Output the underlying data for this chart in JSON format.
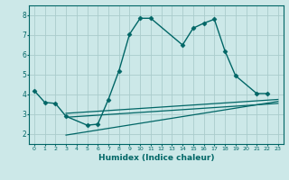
{
  "title": "",
  "xlabel": "Humidex (Indice chaleur)",
  "ylabel": "",
  "background_color": "#cce8e8",
  "grid_color": "#aacccc",
  "line_color": "#006666",
  "xlim": [
    -0.5,
    23.5
  ],
  "ylim": [
    1.5,
    8.5
  ],
  "yticks": [
    2,
    3,
    4,
    5,
    6,
    7,
    8
  ],
  "xticks": [
    0,
    1,
    2,
    3,
    4,
    5,
    6,
    7,
    8,
    9,
    10,
    11,
    12,
    13,
    14,
    15,
    16,
    17,
    18,
    19,
    20,
    21,
    22,
    23
  ],
  "xtick_labels": [
    "0",
    "1",
    "2",
    "3",
    "4",
    "5",
    "6",
    "7",
    "8",
    "9",
    "10",
    "11",
    "12",
    "13",
    "14",
    "15",
    "16",
    "17",
    "18",
    "19",
    "20",
    "21",
    "22",
    "23"
  ],
  "series": [
    {
      "x": [
        0,
        1,
        2,
        3,
        5,
        6,
        7,
        8,
        9,
        10,
        11,
        14,
        15,
        16,
        17,
        18,
        19,
        21,
        22
      ],
      "y": [
        4.2,
        3.6,
        3.55,
        2.9,
        2.45,
        2.5,
        3.75,
        5.2,
        7.05,
        7.85,
        7.85,
        6.5,
        7.35,
        7.6,
        7.8,
        6.2,
        4.95,
        4.05,
        4.05
      ],
      "color": "#006666",
      "linewidth": 1.0,
      "marker": "D",
      "markersize": 2.5
    },
    {
      "x": [
        3,
        23
      ],
      "y": [
        3.05,
        3.75
      ],
      "color": "#006666",
      "linewidth": 0.9,
      "marker": null,
      "markersize": 0
    },
    {
      "x": [
        3,
        23
      ],
      "y": [
        2.85,
        3.55
      ],
      "color": "#006666",
      "linewidth": 0.9,
      "marker": null,
      "markersize": 0
    },
    {
      "x": [
        3,
        23
      ],
      "y": [
        1.95,
        3.65
      ],
      "color": "#006666",
      "linewidth": 0.9,
      "marker": null,
      "markersize": 0
    }
  ]
}
